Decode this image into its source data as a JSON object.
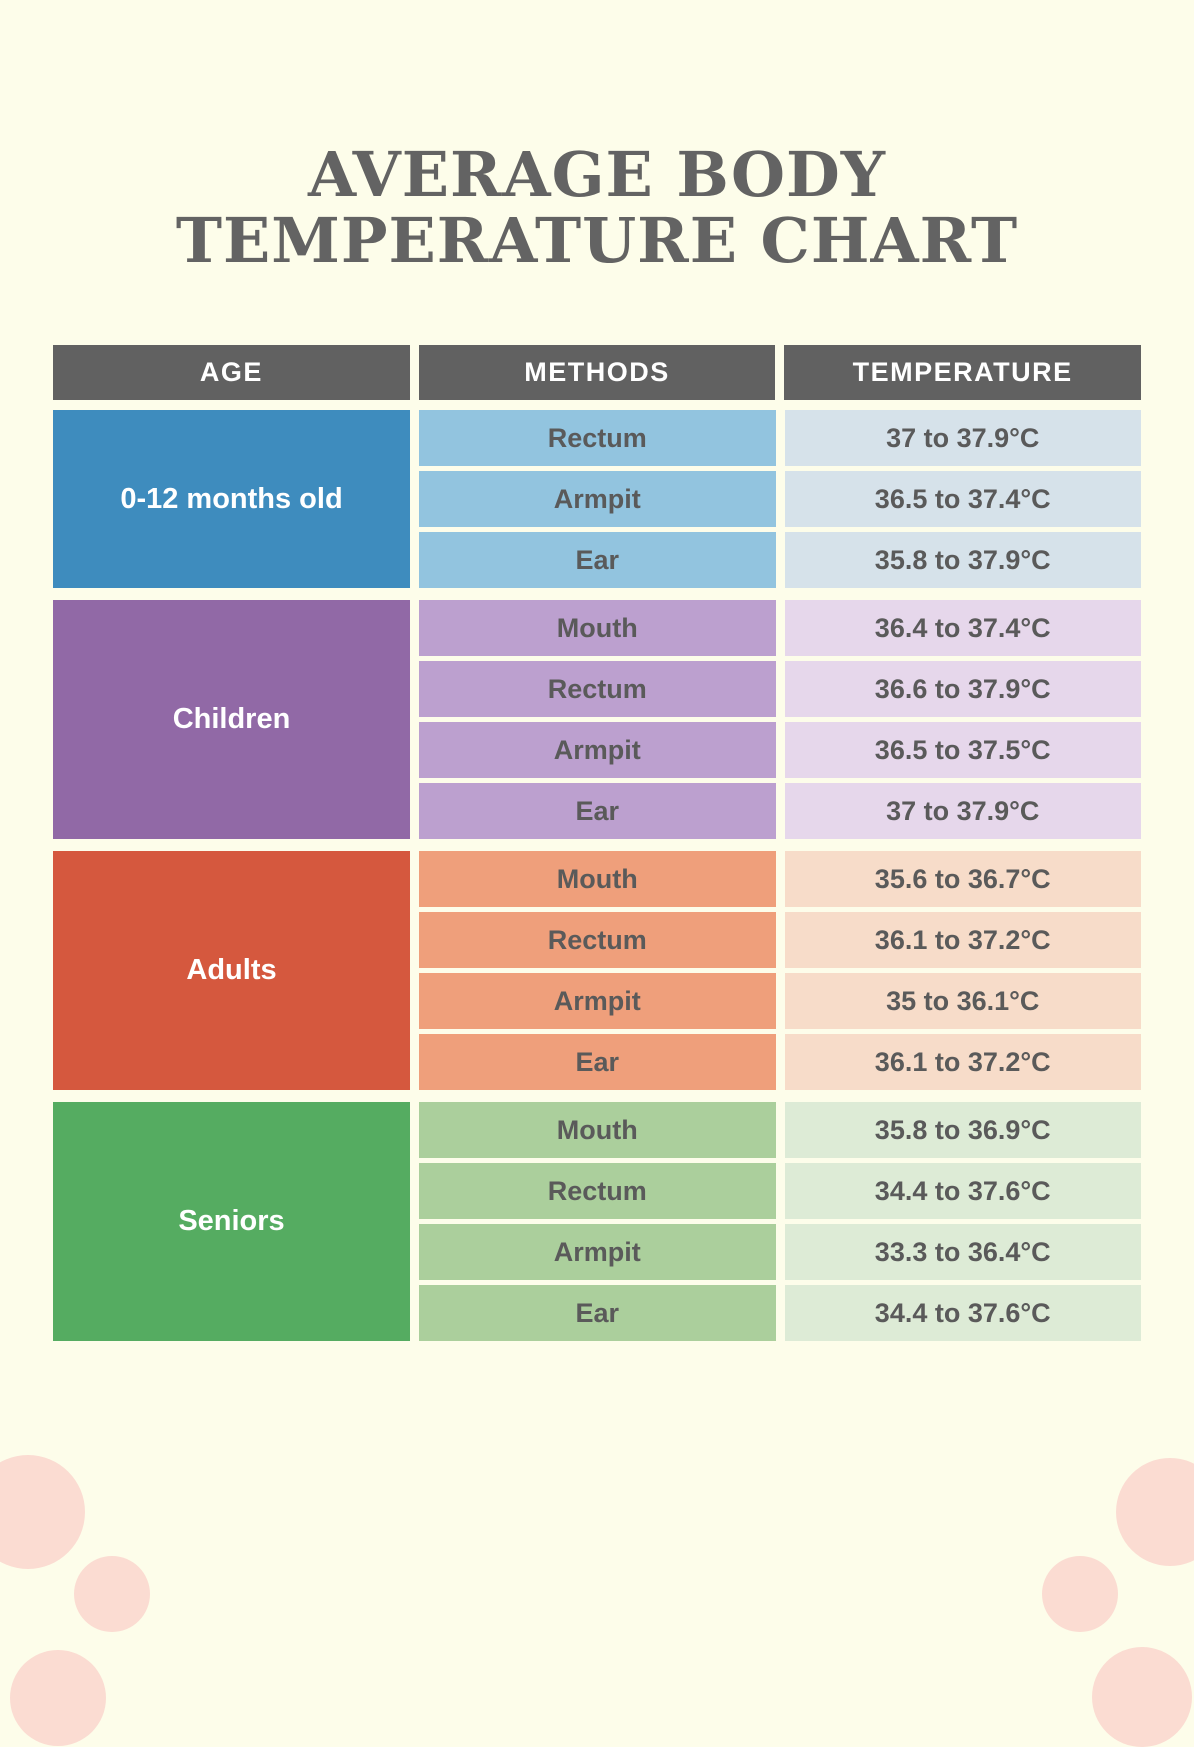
{
  "page": {
    "title_line1": "AVERAGE BODY",
    "title_line2": "TEMPERATURE CHART",
    "background_color": "#FDFDEA",
    "title_color": "#636363",
    "decorative_circle_color": "#FBDCD2"
  },
  "table": {
    "headers": [
      "AGE",
      "METHODS",
      "TEMPERATURE"
    ],
    "header_bg": "#616161",
    "header_text_color": "#FFFFFF",
    "cell_text_color": "#5A5A5A",
    "groups": [
      {
        "age": "0-12 months old",
        "colors": {
          "age_bg": "#3E8CBE",
          "method_bg": "#92C4DF",
          "temp_bg": "#D6E2EA"
        },
        "rows": [
          {
            "method": "Rectum",
            "temperature": "37 to 37.9°C"
          },
          {
            "method": "Armpit",
            "temperature": "36.5 to 37.4°C"
          },
          {
            "method": "Ear",
            "temperature": "35.8 to 37.9°C"
          }
        ]
      },
      {
        "age": "Children",
        "colors": {
          "age_bg": "#9169A6",
          "method_bg": "#BCA0CF",
          "temp_bg": "#E6D7EB"
        },
        "rows": [
          {
            "method": "Mouth",
            "temperature": "36.4 to 37.4°C"
          },
          {
            "method": "Rectum",
            "temperature": "36.6 to 37.9°C"
          },
          {
            "method": "Armpit",
            "temperature": "36.5 to 37.5°C"
          },
          {
            "method": "Ear",
            "temperature": "37 to 37.9°C"
          }
        ]
      },
      {
        "age": "Adults",
        "colors": {
          "age_bg": "#D5583E",
          "method_bg": "#EF9F7B",
          "temp_bg": "#F7DCC9"
        },
        "rows": [
          {
            "method": "Mouth",
            "temperature": "35.6 to 36.7°C"
          },
          {
            "method": "Rectum",
            "temperature": "36.1 to 37.2°C"
          },
          {
            "method": "Armpit",
            "temperature": "35 to 36.1°C"
          },
          {
            "method": "Ear",
            "temperature": "36.1 to 37.2°C"
          }
        ]
      },
      {
        "age": "Seniors",
        "colors": {
          "age_bg": "#55AC61",
          "method_bg": "#ABCF9C",
          "temp_bg": "#DDEBD6"
        },
        "rows": [
          {
            "method": "Mouth",
            "temperature": "35.8 to 36.9°C"
          },
          {
            "method": "Rectum",
            "temperature": "34.4 to 37.6°C"
          },
          {
            "method": "Armpit",
            "temperature": "33.3 to 36.4°C"
          },
          {
            "method": "Ear",
            "temperature": "34.4 to 37.6°C"
          }
        ]
      }
    ]
  },
  "chart_data": {
    "type": "table",
    "title": "Average Body Temperature Chart",
    "columns": [
      "Age",
      "Methods",
      "Temperature"
    ],
    "rows": [
      {
        "age": "0-12 months old",
        "method": "Rectum",
        "temperature": "37 to 37.9°C",
        "min_c": 37,
        "max_c": 37.9
      },
      {
        "age": "0-12 months old",
        "method": "Armpit",
        "temperature": "36.5 to 37.4°C",
        "min_c": 36.5,
        "max_c": 37.4
      },
      {
        "age": "0-12 months old",
        "method": "Ear",
        "temperature": "35.8 to 37.9°C",
        "min_c": 35.8,
        "max_c": 37.9
      },
      {
        "age": "Children",
        "method": "Mouth",
        "temperature": "36.4 to 37.4°C",
        "min_c": 36.4,
        "max_c": 37.4
      },
      {
        "age": "Children",
        "method": "Rectum",
        "temperature": "36.6 to 37.9°C",
        "min_c": 36.6,
        "max_c": 37.9
      },
      {
        "age": "Children",
        "method": "Armpit",
        "temperature": "36.5 to 37.5°C",
        "min_c": 36.5,
        "max_c": 37.5
      },
      {
        "age": "Children",
        "method": "Ear",
        "temperature": "37 to 37.9°C",
        "min_c": 37,
        "max_c": 37.9
      },
      {
        "age": "Adults",
        "method": "Mouth",
        "temperature": "35.6 to 36.7°C",
        "min_c": 35.6,
        "max_c": 36.7
      },
      {
        "age": "Adults",
        "method": "Rectum",
        "temperature": "36.1 to 37.2°C",
        "min_c": 36.1,
        "max_c": 37.2
      },
      {
        "age": "Adults",
        "method": "Armpit",
        "temperature": "35 to 36.1°C",
        "min_c": 35,
        "max_c": 36.1
      },
      {
        "age": "Adults",
        "method": "Ear",
        "temperature": "36.1 to 37.2°C",
        "min_c": 36.1,
        "max_c": 37.2
      },
      {
        "age": "Seniors",
        "method": "Mouth",
        "temperature": "35.8 to 36.9°C",
        "min_c": 35.8,
        "max_c": 36.9
      },
      {
        "age": "Seniors",
        "method": "Rectum",
        "temperature": "34.4 to 37.6°C",
        "min_c": 34.4,
        "max_c": 37.6
      },
      {
        "age": "Seniors",
        "method": "Armpit",
        "temperature": "33.3 to 36.4°C",
        "min_c": 33.3,
        "max_c": 36.4
      },
      {
        "age": "Seniors",
        "method": "Ear",
        "temperature": "34.4 to 37.6°C",
        "min_c": 34.4,
        "max_c": 37.6
      }
    ],
    "unit": "°C",
    "legend_position": "none",
    "grid": false
  }
}
